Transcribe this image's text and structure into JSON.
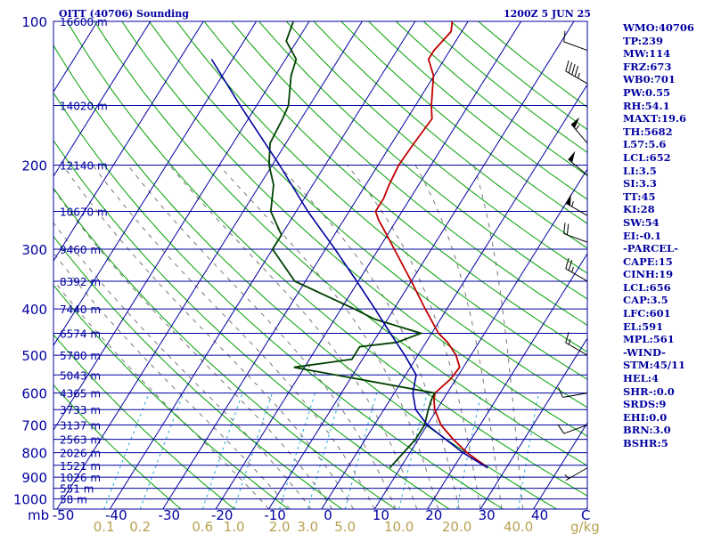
{
  "header": {
    "station": "OITT (40706) Sounding",
    "time": "1200Z  5 JUN 25"
  },
  "indices": [
    "WMO:40706",
    "TP:239",
    "MW:114",
    "FRZ:673",
    "WB0:701",
    "PW:0.55",
    "RH:54.1",
    "MAXT:19.6",
    "TH:5682",
    "L57:5.6",
    "LCL:652",
    "LI:3.5",
    "SI:3.3",
    "TT:45",
    "KI:28",
    "SW:54",
    "EI:-0.1",
    "-PARCEL-",
    "CAPE:15",
    "CINH:19",
    "LCL:656",
    "CAP:3.5",
    "LFC:601",
    "EL:591",
    "MPL:561",
    "-WIND-",
    "STM:45/11",
    "HEL:4",
    "SHR-:0.0",
    "SRDS:9",
    "EHI:0.0",
    "BRN:3.0",
    "BSHR:5"
  ],
  "colors": {
    "isobar": "#0000a0",
    "isotherm": "#0000a0",
    "dry_adiabat": "#00a000",
    "moist_adiabat": "#777777",
    "mixing_ratio": "#22aadd",
    "temperature": "#c00000",
    "dewpoint": "#004000",
    "parcel": "#0000a0",
    "axis_text": "#0000a0",
    "mixing_text": "#b8a050"
  },
  "chart_data": {
    "type": "line",
    "title": "OITT (40706) Sounding",
    "subtitle": "1200Z  5 JUN 25",
    "xlabel": "C",
    "ylabel": "mb",
    "x_unit_label": "C",
    "y_unit_label": "mb",
    "mixing_unit_label": "g/kg",
    "xlim": [
      -50,
      50
    ],
    "ylim": [
      1050,
      100
    ],
    "pressure_ticks": [
      "100",
      "200",
      "300",
      "400",
      "500",
      "600",
      "700",
      "800",
      "900",
      "1000"
    ],
    "temp_ticks": [
      "-50",
      "-40",
      "-30",
      "-20",
      "-10",
      "0",
      "10",
      "20",
      "30",
      "40"
    ],
    "mixing_ratio_ticks": [
      "0.1",
      "0.2",
      "0.6",
      "1.0",
      "2.0",
      "3.0",
      "5.0",
      "10.0",
      "20.0",
      "40.0"
    ],
    "height_labels": [
      {
        "p": 100,
        "h": "16600 m"
      },
      {
        "p": 150,
        "h": "14020 m"
      },
      {
        "p": 200,
        "h": "12140 m"
      },
      {
        "p": 250,
        "h": "10670 m"
      },
      {
        "p": 300,
        "h": "9460 m"
      },
      {
        "p": 350,
        "h": "8392 m"
      },
      {
        "p": 400,
        "h": "7440 m"
      },
      {
        "p": 450,
        "h": "6574 m"
      },
      {
        "p": 500,
        "h": "5780 m"
      },
      {
        "p": 550,
        "h": "5043 m"
      },
      {
        "p": 600,
        "h": "4365 m"
      },
      {
        "p": 650,
        "h": "3733 m"
      },
      {
        "p": 700,
        "h": "3137 m"
      },
      {
        "p": 750,
        "h": "2563 m"
      },
      {
        "p": 800,
        "h": "2026 m"
      },
      {
        "p": 850,
        "h": "1521 m"
      },
      {
        "p": 900,
        "h": "1026 m"
      },
      {
        "p": 950,
        "h": "551 m"
      },
      {
        "p": 1000,
        "h": "58 m"
      }
    ],
    "series": [
      {
        "key": "temperature",
        "points": [
          [
            861,
            26.5
          ],
          [
            850,
            25.6
          ],
          [
            800,
            20.8
          ],
          [
            750,
            16.6
          ],
          [
            700,
            12.6
          ],
          [
            650,
            9.6
          ],
          [
            620,
            8.3
          ],
          [
            600,
            7.7
          ],
          [
            560,
            9.0
          ],
          [
            530,
            9.3
          ],
          [
            500,
            7.2
          ],
          [
            470,
            4.1
          ],
          [
            450,
            1.3
          ],
          [
            400,
            -4.1
          ],
          [
            350,
            -10.0
          ],
          [
            300,
            -17.0
          ],
          [
            280,
            -20.1
          ],
          [
            260,
            -23.5
          ],
          [
            250,
            -25.0
          ],
          [
            235,
            -25.0
          ],
          [
            220,
            -25.6
          ],
          [
            200,
            -26.1
          ],
          [
            180,
            -25.8
          ],
          [
            160,
            -25.3
          ],
          [
            150,
            -27.0
          ],
          [
            130,
            -30.1
          ],
          [
            120,
            -33.0
          ],
          [
            115,
            -33.0
          ],
          [
            105,
            -32.0
          ],
          [
            100,
            -33.0
          ]
        ]
      },
      {
        "key": "dewpoint",
        "points": [
          [
            861,
            8.0
          ],
          [
            800,
            8.8
          ],
          [
            750,
            9.5
          ],
          [
            700,
            9.5
          ],
          [
            650,
            8.4
          ],
          [
            620,
            7.8
          ],
          [
            600,
            7.6
          ],
          [
            530,
            -22.0
          ],
          [
            510,
            -12.0
          ],
          [
            500,
            -12.0
          ],
          [
            480,
            -12.0
          ],
          [
            470,
            -5.5
          ],
          [
            450,
            -2.0
          ],
          [
            420,
            -12.5
          ],
          [
            400,
            -17.5
          ],
          [
            350,
            -32.0
          ],
          [
            300,
            -40.0
          ],
          [
            280,
            -40.0
          ],
          [
            250,
            -44.8
          ],
          [
            220,
            -47.4
          ],
          [
            200,
            -50.6
          ],
          [
            180,
            -53.0
          ],
          [
            160,
            -53.5
          ],
          [
            150,
            -54.0
          ],
          [
            130,
            -57.0
          ],
          [
            120,
            -58.0
          ],
          [
            110,
            -62.0
          ],
          [
            105,
            -62.5
          ],
          [
            100,
            -63.0
          ]
        ]
      },
      {
        "key": "parcel",
        "points": [
          [
            861,
            26.5
          ],
          [
            800,
            20.0
          ],
          [
            700,
            10.0
          ],
          [
            650,
            6.0
          ],
          [
            600,
            3.5
          ],
          [
            550,
            2.0
          ],
          [
            500,
            -2.5
          ],
          [
            450,
            -7.8
          ],
          [
            400,
            -13.6
          ],
          [
            350,
            -20.3
          ],
          [
            300,
            -28.2
          ],
          [
            250,
            -37.8
          ],
          [
            200,
            -48.6
          ],
          [
            150,
            -63.1
          ],
          [
            120,
            -74.0
          ]
        ]
      }
    ],
    "wind_barbs": [
      {
        "p": 115,
        "dir": 290,
        "kt": 10
      },
      {
        "p": 135,
        "dir": 300,
        "kt": 45
      },
      {
        "p": 180,
        "dir": 320,
        "kt": 55
      },
      {
        "p": 210,
        "dir": 310,
        "kt": 50
      },
      {
        "p": 255,
        "dir": 300,
        "kt": 55
      },
      {
        "p": 290,
        "dir": 290,
        "kt": 20
      },
      {
        "p": 350,
        "dir": 300,
        "kt": 25
      },
      {
        "p": 500,
        "dir": 300,
        "kt": 15
      },
      {
        "p": 600,
        "dir": 260,
        "kt": 10
      },
      {
        "p": 700,
        "dir": 250,
        "kt": 10
      },
      {
        "p": 861,
        "dir": 240,
        "kt": 5
      }
    ]
  }
}
